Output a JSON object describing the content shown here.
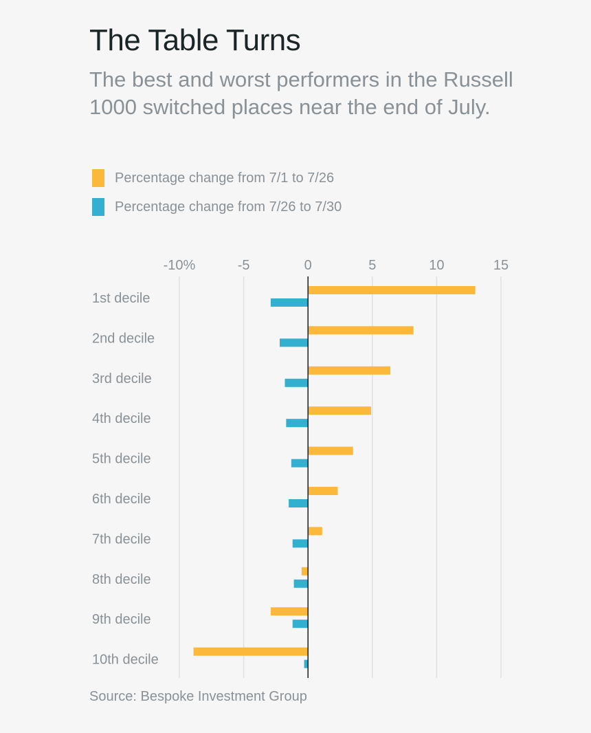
{
  "title": "The Table Turns",
  "subtitle": "The best and worst performers in the Russell 1000 switched places near the end of July.",
  "source": "Source: Bespoke Investment Group",
  "colors": {
    "series1": "#fbb83a",
    "series2": "#33afd0",
    "grid": "#e0e0e0",
    "zero_line": "#1b1b1b",
    "label": "#8a9196"
  },
  "chart_data": {
    "type": "bar",
    "orientation": "horizontal",
    "categories": [
      "1st decile",
      "2nd decile",
      "3rd decile",
      "4th decile",
      "5th decile",
      "6th decile",
      "7th decile",
      "8th decile",
      "9th decile",
      "10th decile"
    ],
    "series": [
      {
        "name": "Percentage change from 7/1 to 7/26",
        "values": [
          13.0,
          8.2,
          6.4,
          4.9,
          3.5,
          2.3,
          1.1,
          -0.5,
          -2.9,
          -8.9
        ]
      },
      {
        "name": "Percentage change from 7/26 to 7/30",
        "values": [
          -2.9,
          -2.2,
          -1.8,
          -1.7,
          -1.3,
          -1.5,
          -1.2,
          -1.1,
          -1.2,
          -0.3
        ]
      }
    ],
    "x_ticks": [
      -10,
      -5,
      0,
      5,
      10,
      15
    ],
    "x_tick_labels": [
      "-10%",
      "-5",
      "0",
      "5",
      "10",
      "15"
    ],
    "xlim": [
      -10,
      15
    ],
    "grid": true,
    "legend_position": "top-left"
  }
}
